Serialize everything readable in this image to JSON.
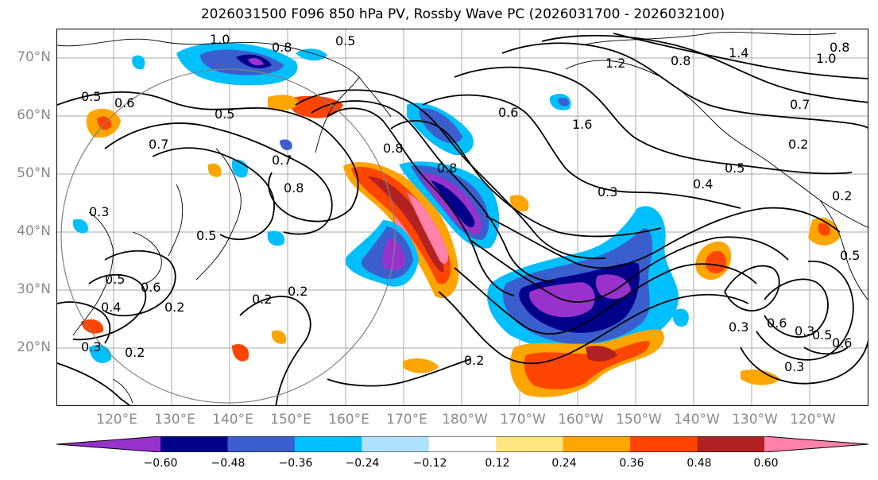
{
  "title": "2026031500 F096 850 hPa PV, Rossby Wave PC (2026031700 - 2026032100)",
  "lat_labels": [
    "70°N",
    "60°N",
    "50°N",
    "40°N",
    "30°N",
    "20°N"
  ],
  "lon_labels": [
    "120°E",
    "130°E",
    "140°E",
    "150°E",
    "160°E",
    "170°E",
    "180°W",
    "170°W",
    "160°W",
    "150°W",
    "140°W",
    "130°W",
    "120°W"
  ],
  "colorbar": {
    "levels": [
      -0.6,
      -0.48,
      -0.36,
      -0.24,
      -0.12,
      0.12,
      0.24,
      0.36,
      0.48,
      0.6
    ],
    "tick_labels": [
      "−0.60",
      "−0.48",
      "−0.36",
      "−0.24",
      "−0.12",
      "0.12",
      "0.24",
      "0.36",
      "0.48",
      "0.60"
    ],
    "colors": [
      "#9932cc",
      "#00008b",
      "#3a5fcd",
      "#00bfff",
      "#b0e2ff",
      "#ffffff",
      "#ffe680",
      "#ffa500",
      "#ff4500",
      "#b22222",
      "#ff82ab"
    ],
    "extend": "both"
  },
  "contour_labels": [
    "1.0",
    "0.8",
    "0.5",
    "0.5",
    "0.6",
    "0.5",
    "0.7",
    "0.7",
    "0.8",
    "0.5",
    "0.3",
    "0.5",
    "0.6",
    "0.4",
    "0.2",
    "0.3",
    "0.2",
    "0.8",
    "0.6",
    "0.8",
    "1.6",
    "1.2",
    "0.8",
    "1.4",
    "1.0",
    "0.8",
    "0.7",
    "0.2",
    "0.3",
    "0.4",
    "0.5",
    "0.2",
    "0.3",
    "0.3",
    "0.6",
    "0.5",
    "0.3",
    "0.6",
    "0.5",
    "0.2",
    "0.2",
    "0.2"
  ],
  "map_region": "North Pacific, 10°N–75°N, 110°E–115°W"
}
